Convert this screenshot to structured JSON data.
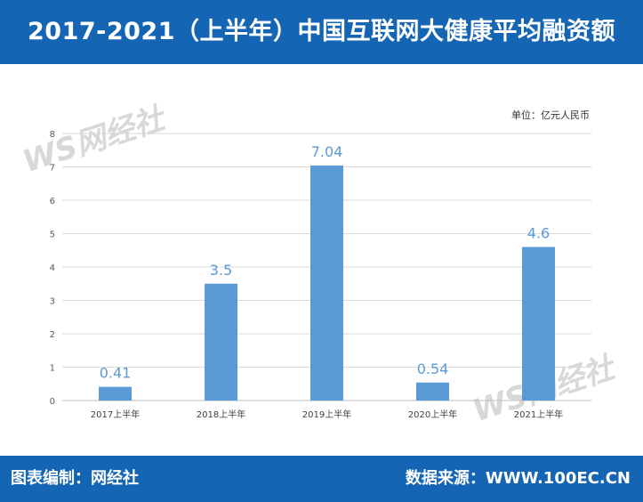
{
  "header": {
    "title": "2017-2021（上半年）中国互联网大健康平均融资额"
  },
  "unit_label": "单位：亿元人民币",
  "watermark": {
    "text": "WS网经社"
  },
  "footer": {
    "left_label": "图表编制：网经社",
    "right_label": "数据来源：WWW.100EC.CN"
  },
  "colors": {
    "header_bg": "#1565b5",
    "bar": "#5b9bd5",
    "value_label": "#5b9bd5",
    "grid": "#d9d9d9"
  },
  "chart_data": {
    "type": "bar",
    "categories": [
      "2017上半年",
      "2018上半年",
      "2019上半年",
      "2020上半年",
      "2021上半年"
    ],
    "values": [
      0.41,
      3.5,
      7.04,
      0.54,
      4.6
    ],
    "value_labels": [
      "0.41",
      "3.5",
      "7.04",
      "0.54",
      "4.6"
    ],
    "y_ticks": [
      "0",
      "1",
      "2",
      "3",
      "4",
      "5",
      "6",
      "7",
      "8"
    ],
    "ylim": [
      0,
      8
    ],
    "grid": true,
    "title": "2017-2021（上半年）中国互联网大健康平均融资额",
    "xlabel": "",
    "ylabel": ""
  }
}
